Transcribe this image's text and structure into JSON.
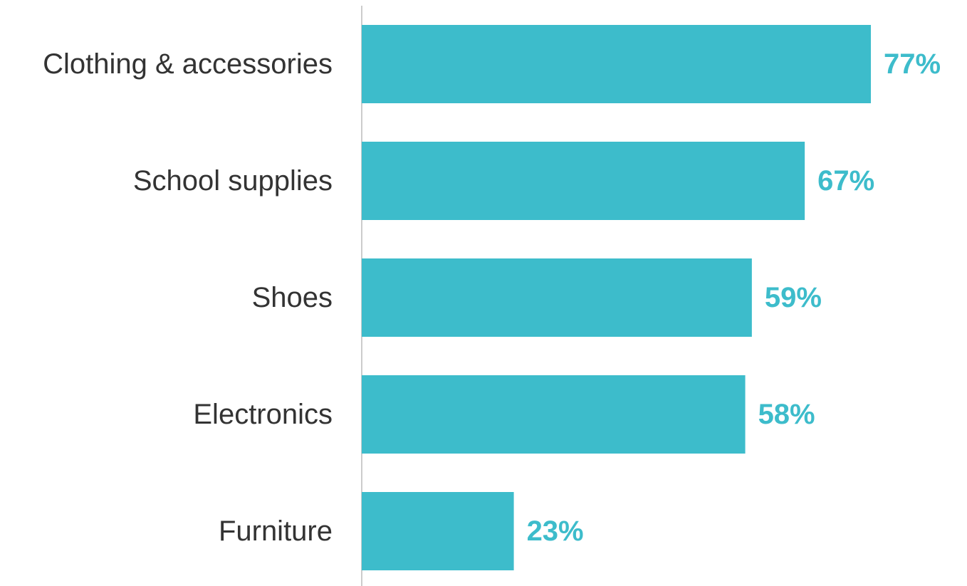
{
  "chart_data": {
    "type": "bar",
    "orientation": "horizontal",
    "categories": [
      "Clothing & accessories",
      "School supplies",
      "Shoes",
      "Electronics",
      "Furniture"
    ],
    "values": [
      77,
      67,
      59,
      58,
      23
    ],
    "value_labels": [
      "77%",
      "67%",
      "59%",
      "58%",
      "23%"
    ],
    "unit": "%",
    "xlim": [
      0,
      77
    ],
    "grid": false,
    "legend": "none",
    "title": "",
    "xlabel": "",
    "ylabel": ""
  },
  "colors": {
    "bar": "#3dbccb",
    "value_label": "#3dbccb",
    "category_label": "#333333",
    "axis_line": "#cccccc"
  }
}
